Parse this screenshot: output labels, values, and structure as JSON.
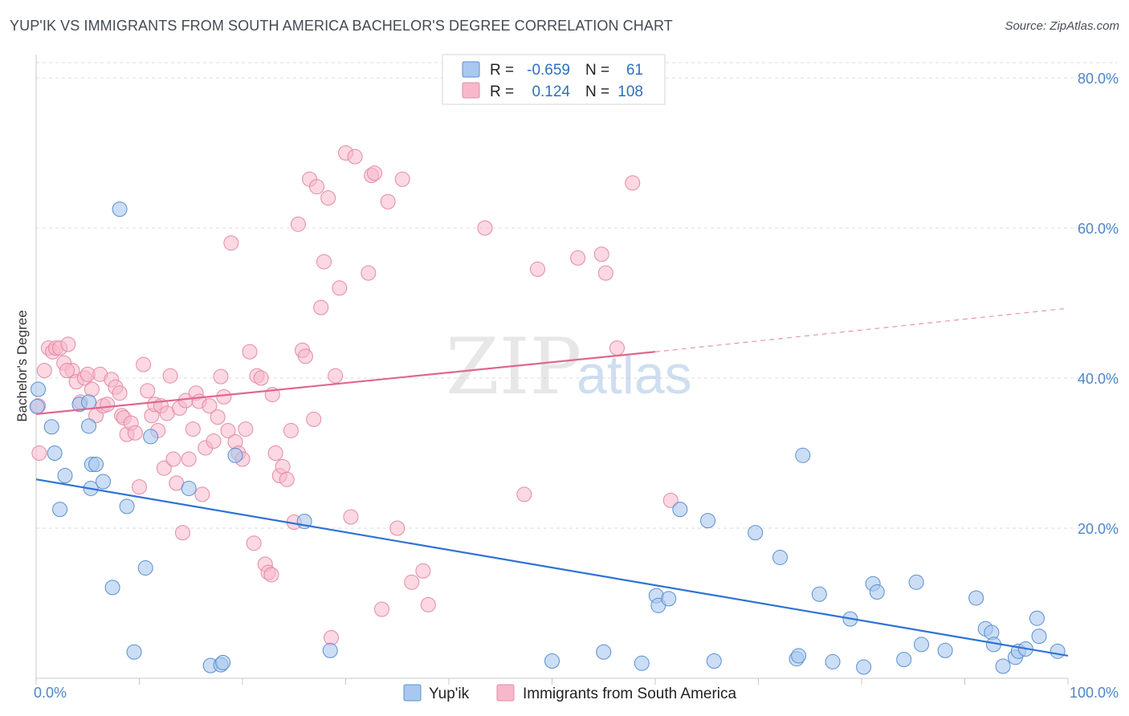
{
  "title": "YUP'IK VS IMMIGRANTS FROM SOUTH AMERICA BACHELOR'S DEGREE CORRELATION CHART",
  "source": "Source: ZipAtlas.com",
  "watermark": {
    "zip": "ZIP",
    "atlas": "atlas"
  },
  "legend": {
    "rows": [
      {
        "r_label": "R =",
        "r_value": "-0.659",
        "n_label": "N =",
        "n_value": "61"
      },
      {
        "r_label": "R =",
        "r_value": "0.124",
        "n_label": "N =",
        "n_value": "108"
      }
    ]
  },
  "bottom_legend": [
    "Yup'ik",
    "Immigrants from South America"
  ],
  "colors": {
    "series1_fill": "#a8c8f0",
    "series1_stroke": "#5b8fd0",
    "series1_line": "#2f72d4",
    "series2_fill": "#f7b8cb",
    "series2_stroke": "#e58aa6",
    "series2_line": "#e0678f",
    "axis_text": "#4e86c9",
    "grid": "#dcdcdc"
  },
  "chart_data": {
    "type": "scatter",
    "title": "YUP'IK VS IMMIGRANTS FROM SOUTH AMERICA BACHELOR'S DEGREE CORRELATION CHART",
    "xlabel": "",
    "ylabel": "Bachelor's Degree",
    "xlim": [
      0,
      100
    ],
    "ylim": [
      0,
      80
    ],
    "x_ticks": [
      "0.0%",
      "100.0%"
    ],
    "y_ticks": [
      "20.0%",
      "40.0%",
      "60.0%",
      "80.0%"
    ],
    "grid": true,
    "series": [
      {
        "name": "Yup'ik",
        "r": -0.659,
        "n": 61,
        "trend": {
          "x": [
            0,
            100
          ],
          "y": [
            26.5,
            3.0
          ],
          "dashed_from": null
        },
        "points": [
          [
            0.2,
            38.5
          ],
          [
            1.5,
            33.5
          ],
          [
            1.8,
            30
          ],
          [
            2.8,
            27
          ],
          [
            2.3,
            22.5
          ],
          [
            4.2,
            36.5
          ],
          [
            5.3,
            25.3
          ],
          [
            5.1,
            36.8
          ],
          [
            5.1,
            33.6
          ],
          [
            5.4,
            28.5
          ],
          [
            5.8,
            28.5
          ],
          [
            6.5,
            26.2
          ],
          [
            7.4,
            12.1
          ],
          [
            8.1,
            62.5
          ],
          [
            8.8,
            22.9
          ],
          [
            9.5,
            3.5
          ],
          [
            10.6,
            14.7
          ],
          [
            11.1,
            32.2
          ],
          [
            14.8,
            25.3
          ],
          [
            16.9,
            1.7
          ],
          [
            17.9,
            1.8
          ],
          [
            18.1,
            2.1
          ],
          [
            19.3,
            29.7
          ],
          [
            26.0,
            20.9
          ],
          [
            28.5,
            3.7
          ],
          [
            50.0,
            2.3
          ],
          [
            55.0,
            3.5
          ],
          [
            58.7,
            2.0
          ],
          [
            60.1,
            11
          ],
          [
            60.3,
            9.7
          ],
          [
            61.3,
            10.6
          ],
          [
            62.4,
            22.5
          ],
          [
            65.1,
            21.0
          ],
          [
            65.7,
            2.3
          ],
          [
            69.7,
            19.4
          ],
          [
            72.1,
            16.1
          ],
          [
            73.7,
            2.6
          ],
          [
            73.9,
            3.0
          ],
          [
            74.3,
            29.7
          ],
          [
            75.9,
            11.2
          ],
          [
            77.2,
            2.2
          ],
          [
            78.9,
            7.9
          ],
          [
            80.2,
            1.5
          ],
          [
            81.1,
            12.6
          ],
          [
            81.5,
            11.5
          ],
          [
            84.1,
            2.5
          ],
          [
            85.3,
            12.8
          ],
          [
            85.8,
            4.5
          ],
          [
            88.1,
            3.7
          ],
          [
            91.1,
            10.7
          ],
          [
            92.0,
            6.6
          ],
          [
            92.6,
            6.1
          ],
          [
            92.8,
            4.5
          ],
          [
            93.7,
            1.6
          ],
          [
            94.9,
            2.8
          ],
          [
            95.2,
            3.6
          ],
          [
            95.9,
            3.9
          ],
          [
            97.0,
            8.0
          ],
          [
            97.2,
            5.6
          ],
          [
            99.0,
            3.6
          ],
          [
            0.1,
            36.2
          ]
        ]
      },
      {
        "name": "Immigrants from South America",
        "r": 0.124,
        "n": 108,
        "trend": {
          "x": [
            0,
            60,
            100
          ],
          "y": [
            35.2,
            43.5,
            49.3
          ],
          "dashed_from": 60
        },
        "points": [
          [
            0.2,
            36.3
          ],
          [
            0.3,
            30.0
          ],
          [
            0.8,
            41.0
          ],
          [
            1.2,
            44.0
          ],
          [
            1.6,
            43.5
          ],
          [
            1.9,
            44
          ],
          [
            2.3,
            44
          ],
          [
            2.7,
            42
          ],
          [
            3.1,
            44.5
          ],
          [
            3.5,
            41
          ],
          [
            3.9,
            39.5
          ],
          [
            4.3,
            36.8
          ],
          [
            4.7,
            40
          ],
          [
            5.0,
            40.5
          ],
          [
            5.4,
            38.5
          ],
          [
            5.8,
            35
          ],
          [
            6.2,
            40.5
          ],
          [
            6.5,
            36.3
          ],
          [
            6.9,
            36.5
          ],
          [
            7.3,
            39.8
          ],
          [
            7.7,
            38.8
          ],
          [
            8.1,
            38
          ],
          [
            8.3,
            35
          ],
          [
            8.5,
            34.7
          ],
          [
            8.8,
            32.5
          ],
          [
            9.2,
            34
          ],
          [
            9.6,
            32.7
          ],
          [
            10.0,
            25.5
          ],
          [
            10.4,
            41.8
          ],
          [
            10.8,
            38.3
          ],
          [
            11.2,
            35
          ],
          [
            11.5,
            36.5
          ],
          [
            11.8,
            33
          ],
          [
            12.1,
            36.3
          ],
          [
            12.4,
            28
          ],
          [
            12.7,
            35.3
          ],
          [
            13.0,
            40.3
          ],
          [
            13.3,
            29.2
          ],
          [
            13.6,
            26
          ],
          [
            13.9,
            36
          ],
          [
            14.2,
            19.4
          ],
          [
            14.5,
            37
          ],
          [
            14.8,
            29.2
          ],
          [
            15.2,
            33.2
          ],
          [
            15.5,
            38
          ],
          [
            15.8,
            36.9
          ],
          [
            16.1,
            24.5
          ],
          [
            16.4,
            30.7
          ],
          [
            16.8,
            36.3
          ],
          [
            17.2,
            31.6
          ],
          [
            17.6,
            34.8
          ],
          [
            17.9,
            40.2
          ],
          [
            18.2,
            37.5
          ],
          [
            18.6,
            33.0
          ],
          [
            18.9,
            58
          ],
          [
            19.3,
            31.5
          ],
          [
            19.6,
            30
          ],
          [
            20.0,
            29.2
          ],
          [
            20.3,
            33.2
          ],
          [
            20.7,
            43.5
          ],
          [
            21.1,
            18
          ],
          [
            21.4,
            40.3
          ],
          [
            21.8,
            40
          ],
          [
            22.2,
            15.2
          ],
          [
            22.5,
            14.1
          ],
          [
            22.9,
            37.8
          ],
          [
            23.2,
            30
          ],
          [
            23.6,
            27
          ],
          [
            23.9,
            28.2
          ],
          [
            24.3,
            26.5
          ],
          [
            24.7,
            33
          ],
          [
            25.0,
            20.8
          ],
          [
            25.4,
            60.5
          ],
          [
            25.8,
            43.7
          ],
          [
            26.1,
            42.9
          ],
          [
            26.5,
            66.5
          ],
          [
            26.9,
            34.5
          ],
          [
            27.2,
            65.5
          ],
          [
            27.6,
            49.4
          ],
          [
            27.9,
            55.5
          ],
          [
            28.3,
            64
          ],
          [
            28.6,
            5.4
          ],
          [
            29.0,
            40.3
          ],
          [
            29.4,
            52
          ],
          [
            30.0,
            70
          ],
          [
            30.5,
            21.5
          ],
          [
            30.9,
            69.5
          ],
          [
            32.2,
            54
          ],
          [
            32.5,
            67
          ],
          [
            32.8,
            67.3
          ],
          [
            33.5,
            9.2
          ],
          [
            34.1,
            63.5
          ],
          [
            35.0,
            20.0
          ],
          [
            35.5,
            66.5
          ],
          [
            36.4,
            12.8
          ],
          [
            37.5,
            14.3
          ],
          [
            38.0,
            9.8
          ],
          [
            43.5,
            60
          ],
          [
            47.3,
            24.5
          ],
          [
            48.6,
            54.5
          ],
          [
            52.5,
            56
          ],
          [
            54.8,
            56.5
          ],
          [
            55.2,
            54
          ],
          [
            56.3,
            44
          ],
          [
            57.8,
            66
          ],
          [
            61.5,
            23.7
          ],
          [
            22.8,
            13.8
          ],
          [
            3.0,
            41
          ]
        ]
      }
    ]
  }
}
